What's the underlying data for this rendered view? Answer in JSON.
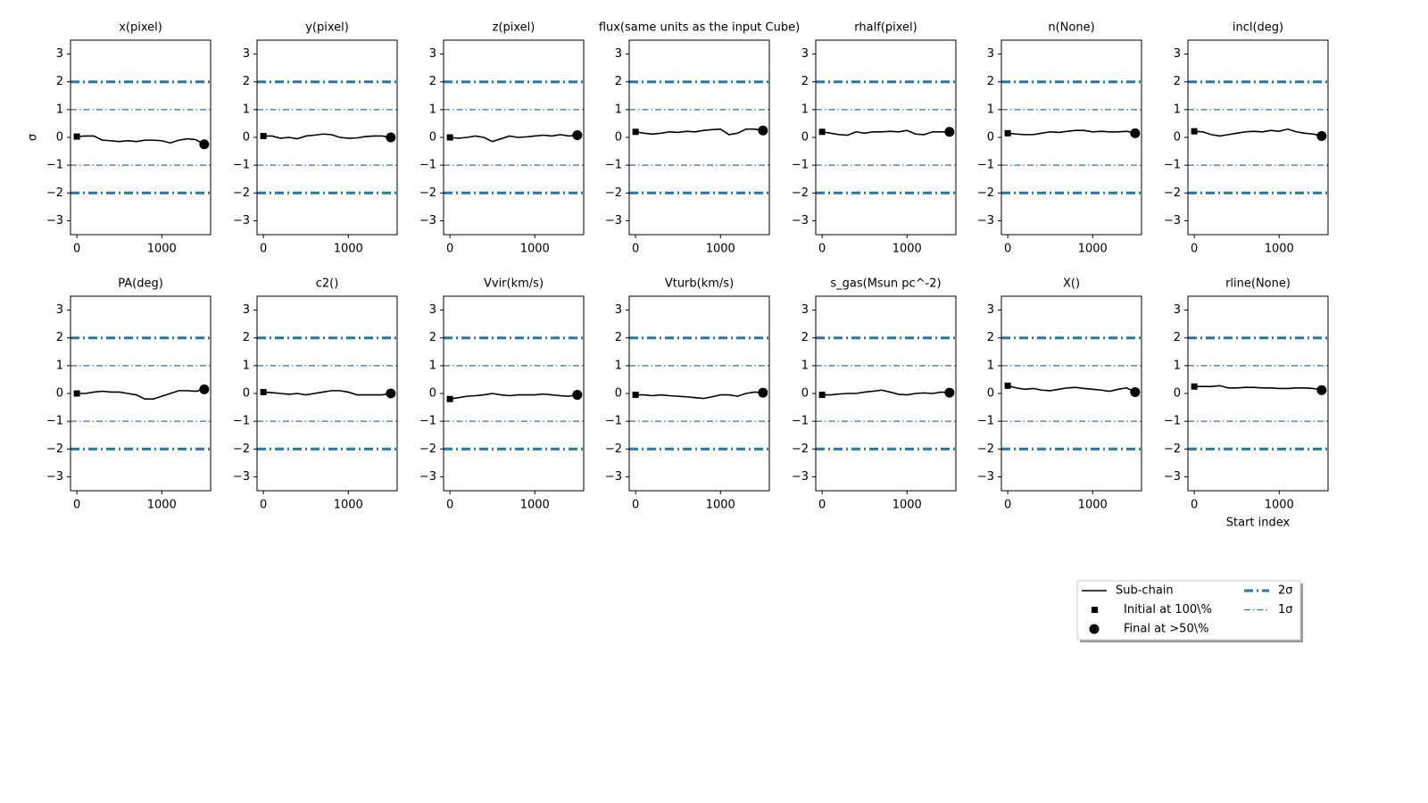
{
  "legend": {
    "entries": [
      {
        "label": "Sub-chain",
        "color": "#000000",
        "marker": "line"
      },
      {
        "label": "Initial at 100\\%",
        "color": "#000000",
        "marker": "square"
      },
      {
        "label": "Final at  >50\\%",
        "color": "#000000",
        "marker": "circle"
      },
      {
        "label": "2σ",
        "color": "#1f77b4",
        "marker": "thick-dashdot",
        "lines_at": [
          2,
          -2
        ]
      },
      {
        "label": "1σ",
        "color": "#1f77b4",
        "marker": "thin-dashdot",
        "lines_at": [
          1,
          -1
        ]
      }
    ]
  },
  "chart_data": [
    {
      "type": "line",
      "title": "x(pixel)",
      "ylabel": "σ",
      "x": [
        0,
        100,
        200,
        300,
        400,
        500,
        600,
        700,
        800,
        900,
        1000,
        1100,
        1200,
        1300,
        1400,
        1500
      ],
      "series": [
        {
          "values": [
            0.03,
            0.05,
            0.05,
            -0.1,
            -0.12,
            -0.15,
            -0.12,
            -0.15,
            -0.1,
            -0.1,
            -0.12,
            -0.2,
            -0.1,
            -0.05,
            -0.08,
            -0.25
          ]
        }
      ],
      "xlim": [
        -75,
        1575
      ],
      "ylim": [
        -3.5,
        3.5
      ],
      "xticks": [
        0,
        1000
      ],
      "yticks": [
        {
          "value": -3,
          "label": "−3"
        },
        {
          "value": -2,
          "label": "−2"
        },
        {
          "value": -1,
          "label": "−1"
        },
        0,
        1,
        2,
        3
      ]
    },
    {
      "type": "line",
      "title": "y(pixel)",
      "x": [
        0,
        100,
        200,
        300,
        400,
        500,
        600,
        700,
        800,
        900,
        1000,
        1100,
        1200,
        1300,
        1400,
        1500
      ],
      "series": [
        {
          "values": [
            0.05,
            0.05,
            -0.03,
            0.0,
            -0.05,
            0.05,
            0.08,
            0.12,
            0.1,
            0.0,
            -0.03,
            -0.02,
            0.03,
            0.05,
            0.05,
            0.0
          ]
        }
      ],
      "xlim": [
        -75,
        1575
      ],
      "ylim": [
        -3.5,
        3.5
      ],
      "xticks": [
        0,
        1000
      ],
      "yticks": [
        {
          "value": -3,
          "label": "−3"
        },
        {
          "value": -2,
          "label": "−2"
        },
        {
          "value": -1,
          "label": "−1"
        },
        0,
        1,
        2,
        3
      ]
    },
    {
      "type": "line",
      "title": "z(pixel)",
      "x": [
        0,
        100,
        200,
        300,
        400,
        500,
        600,
        700,
        800,
        900,
        1000,
        1100,
        1200,
        1300,
        1400,
        1500
      ],
      "series": [
        {
          "values": [
            0.0,
            -0.03,
            0.0,
            0.05,
            0.0,
            -0.15,
            -0.05,
            0.05,
            0.0,
            0.02,
            0.05,
            0.08,
            0.05,
            0.1,
            0.05,
            0.08
          ]
        }
      ],
      "xlim": [
        -75,
        1575
      ],
      "ylim": [
        -3.5,
        3.5
      ],
      "xticks": [
        0,
        1000
      ],
      "yticks": [
        {
          "value": -3,
          "label": "−3"
        },
        {
          "value": -2,
          "label": "−2"
        },
        {
          "value": -1,
          "label": "−1"
        },
        0,
        1,
        2,
        3
      ]
    },
    {
      "type": "line",
      "title": "flux(same units as the input Cube)",
      "x": [
        0,
        100,
        200,
        300,
        400,
        500,
        600,
        700,
        800,
        900,
        1000,
        1100,
        1200,
        1300,
        1400,
        1500
      ],
      "series": [
        {
          "values": [
            0.2,
            0.15,
            0.12,
            0.15,
            0.2,
            0.18,
            0.22,
            0.2,
            0.25,
            0.28,
            0.3,
            0.1,
            0.15,
            0.3,
            0.3,
            0.25
          ]
        }
      ],
      "xlim": [
        -75,
        1575
      ],
      "ylim": [
        -3.5,
        3.5
      ],
      "xticks": [
        0,
        1000
      ],
      "yticks": [
        {
          "value": -3,
          "label": "−3"
        },
        {
          "value": -2,
          "label": "−2"
        },
        {
          "value": -1,
          "label": "−1"
        },
        0,
        1,
        2,
        3
      ]
    },
    {
      "type": "line",
      "title": "rhalf(pixel)",
      "x": [
        0,
        100,
        200,
        300,
        400,
        500,
        600,
        700,
        800,
        900,
        1000,
        1100,
        1200,
        1300,
        1400,
        1500
      ],
      "series": [
        {
          "values": [
            0.2,
            0.15,
            0.1,
            0.08,
            0.2,
            0.15,
            0.2,
            0.2,
            0.22,
            0.2,
            0.25,
            0.12,
            0.1,
            0.2,
            0.2,
            0.2
          ]
        }
      ],
      "xlim": [
        -75,
        1575
      ],
      "ylim": [
        -3.5,
        3.5
      ],
      "xticks": [
        0,
        1000
      ],
      "yticks": [
        {
          "value": -3,
          "label": "−3"
        },
        {
          "value": -2,
          "label": "−2"
        },
        {
          "value": -1,
          "label": "−1"
        },
        0,
        1,
        2,
        3
      ]
    },
    {
      "type": "line",
      "title": "n(None)",
      "x": [
        0,
        100,
        200,
        300,
        400,
        500,
        600,
        700,
        800,
        900,
        1000,
        1100,
        1200,
        1300,
        1400,
        1500
      ],
      "series": [
        {
          "values": [
            0.15,
            0.12,
            0.1,
            0.1,
            0.15,
            0.2,
            0.18,
            0.22,
            0.25,
            0.25,
            0.2,
            0.22,
            0.2,
            0.2,
            0.22,
            0.15
          ]
        }
      ],
      "xlim": [
        -75,
        1575
      ],
      "ylim": [
        -3.5,
        3.5
      ],
      "xticks": [
        0,
        1000
      ],
      "yticks": [
        {
          "value": -3,
          "label": "−3"
        },
        {
          "value": -2,
          "label": "−2"
        },
        {
          "value": -1,
          "label": "−1"
        },
        0,
        1,
        2,
        3
      ]
    },
    {
      "type": "line",
      "title": "incl(deg)",
      "x": [
        0,
        100,
        200,
        300,
        400,
        500,
        600,
        700,
        800,
        900,
        1000,
        1100,
        1200,
        1300,
        1400,
        1500
      ],
      "series": [
        {
          "values": [
            0.22,
            0.2,
            0.1,
            0.05,
            0.1,
            0.15,
            0.2,
            0.22,
            0.2,
            0.25,
            0.22,
            0.3,
            0.2,
            0.15,
            0.12,
            0.05
          ]
        }
      ],
      "xlim": [
        -75,
        1575
      ],
      "ylim": [
        -3.5,
        3.5
      ],
      "xticks": [
        0,
        1000
      ],
      "yticks": [
        {
          "value": -3,
          "label": "−3"
        },
        {
          "value": -2,
          "label": "−2"
        },
        {
          "value": -1,
          "label": "−1"
        },
        0,
        1,
        2,
        3
      ]
    },
    {
      "type": "line",
      "title": "PA(deg)",
      "x": [
        0,
        100,
        200,
        300,
        400,
        500,
        600,
        700,
        800,
        900,
        1000,
        1100,
        1200,
        1300,
        1400,
        1500
      ],
      "series": [
        {
          "values": [
            0.0,
            0.0,
            0.05,
            0.08,
            0.05,
            0.05,
            0.0,
            -0.05,
            -0.2,
            -0.2,
            -0.1,
            0.0,
            0.1,
            0.1,
            0.08,
            0.15
          ]
        }
      ],
      "xlim": [
        -75,
        1575
      ],
      "ylim": [
        -3.5,
        3.5
      ],
      "xticks": [
        0,
        1000
      ],
      "yticks": [
        {
          "value": -3,
          "label": "−3"
        },
        {
          "value": -2,
          "label": "−2"
        },
        {
          "value": -1,
          "label": "−1"
        },
        0,
        1,
        2,
        3
      ]
    },
    {
      "type": "line",
      "title": "c2()",
      "x": [
        0,
        100,
        200,
        300,
        400,
        500,
        600,
        700,
        800,
        900,
        1000,
        1100,
        1200,
        1300,
        1400,
        1500
      ],
      "series": [
        {
          "values": [
            0.05,
            0.03,
            0.0,
            -0.03,
            0.0,
            -0.05,
            0.0,
            0.05,
            0.1,
            0.1,
            0.05,
            -0.05,
            -0.05,
            -0.05,
            -0.05,
            0.0
          ]
        }
      ],
      "xlim": [
        -75,
        1575
      ],
      "ylim": [
        -3.5,
        3.5
      ],
      "xticks": [
        0,
        1000
      ],
      "yticks": [
        {
          "value": -3,
          "label": "−3"
        },
        {
          "value": -2,
          "label": "−2"
        },
        {
          "value": -1,
          "label": "−1"
        },
        0,
        1,
        2,
        3
      ]
    },
    {
      "type": "line",
      "title": "Vvir(km/s)",
      "x": [
        0,
        100,
        200,
        300,
        400,
        500,
        600,
        700,
        800,
        900,
        1000,
        1100,
        1200,
        1300,
        1400,
        1500
      ],
      "series": [
        {
          "values": [
            -0.2,
            -0.15,
            -0.1,
            -0.08,
            -0.05,
            0.0,
            -0.05,
            -0.08,
            -0.05,
            -0.05,
            -0.05,
            -0.02,
            -0.05,
            -0.08,
            -0.1,
            -0.05
          ]
        }
      ],
      "xlim": [
        -75,
        1575
      ],
      "ylim": [
        -3.5,
        3.5
      ],
      "xticks": [
        0,
        1000
      ],
      "yticks": [
        {
          "value": -3,
          "label": "−3"
        },
        {
          "value": -2,
          "label": "−2"
        },
        {
          "value": -1,
          "label": "−1"
        },
        0,
        1,
        2,
        3
      ]
    },
    {
      "type": "line",
      "title": "Vturb(km/s)",
      "x": [
        0,
        100,
        200,
        300,
        400,
        500,
        600,
        700,
        800,
        900,
        1000,
        1100,
        1200,
        1300,
        1400,
        1500
      ],
      "series": [
        {
          "values": [
            -0.05,
            -0.05,
            -0.08,
            -0.05,
            -0.08,
            -0.1,
            -0.12,
            -0.15,
            -0.18,
            -0.12,
            -0.05,
            -0.05,
            -0.1,
            0.0,
            0.05,
            0.03
          ]
        }
      ],
      "xlim": [
        -75,
        1575
      ],
      "ylim": [
        -3.5,
        3.5
      ],
      "xticks": [
        0,
        1000
      ],
      "yticks": [
        {
          "value": -3,
          "label": "−3"
        },
        {
          "value": -2,
          "label": "−2"
        },
        {
          "value": -1,
          "label": "−1"
        },
        0,
        1,
        2,
        3
      ]
    },
    {
      "type": "line",
      "title": "s_gas(Msun pc^-2)",
      "x": [
        0,
        100,
        200,
        300,
        400,
        500,
        600,
        700,
        800,
        900,
        1000,
        1100,
        1200,
        1300,
        1400,
        1500
      ],
      "series": [
        {
          "values": [
            -0.05,
            -0.05,
            -0.02,
            0.0,
            0.0,
            0.05,
            0.08,
            0.12,
            0.05,
            -0.03,
            -0.05,
            0.0,
            0.02,
            0.0,
            0.05,
            0.03
          ]
        }
      ],
      "xlim": [
        -75,
        1575
      ],
      "ylim": [
        -3.5,
        3.5
      ],
      "xticks": [
        0,
        1000
      ],
      "yticks": [
        {
          "value": -3,
          "label": "−3"
        },
        {
          "value": -2,
          "label": "−2"
        },
        {
          "value": -1,
          "label": "−1"
        },
        0,
        1,
        2,
        3
      ]
    },
    {
      "type": "line",
      "title": "X()",
      "x": [
        0,
        100,
        200,
        300,
        400,
        500,
        600,
        700,
        800,
        900,
        1000,
        1100,
        1200,
        1300,
        1400,
        1500
      ],
      "series": [
        {
          "values": [
            0.28,
            0.2,
            0.15,
            0.18,
            0.12,
            0.1,
            0.15,
            0.2,
            0.22,
            0.18,
            0.15,
            0.12,
            0.08,
            0.15,
            0.2,
            0.05
          ]
        }
      ],
      "xlim": [
        -75,
        1575
      ],
      "ylim": [
        -3.5,
        3.5
      ],
      "xticks": [
        0,
        1000
      ],
      "yticks": [
        {
          "value": -3,
          "label": "−3"
        },
        {
          "value": -2,
          "label": "−2"
        },
        {
          "value": -1,
          "label": "−1"
        },
        0,
        1,
        2,
        3
      ]
    },
    {
      "type": "line",
      "title": "rline(None)",
      "xlabel": "Start index",
      "x": [
        0,
        100,
        200,
        300,
        400,
        500,
        600,
        700,
        800,
        900,
        1000,
        1100,
        1200,
        1300,
        1400,
        1500
      ],
      "series": [
        {
          "values": [
            0.25,
            0.25,
            0.25,
            0.28,
            0.2,
            0.2,
            0.22,
            0.22,
            0.2,
            0.2,
            0.18,
            0.18,
            0.2,
            0.2,
            0.18,
            0.12
          ]
        }
      ],
      "xlim": [
        -75,
        1575
      ],
      "ylim": [
        -3.5,
        3.5
      ],
      "xticks": [
        0,
        1000
      ],
      "yticks": [
        {
          "value": -3,
          "label": "−3"
        },
        {
          "value": -2,
          "label": "−2"
        },
        {
          "value": -1,
          "label": "−1"
        },
        0,
        1,
        2,
        3
      ]
    }
  ]
}
